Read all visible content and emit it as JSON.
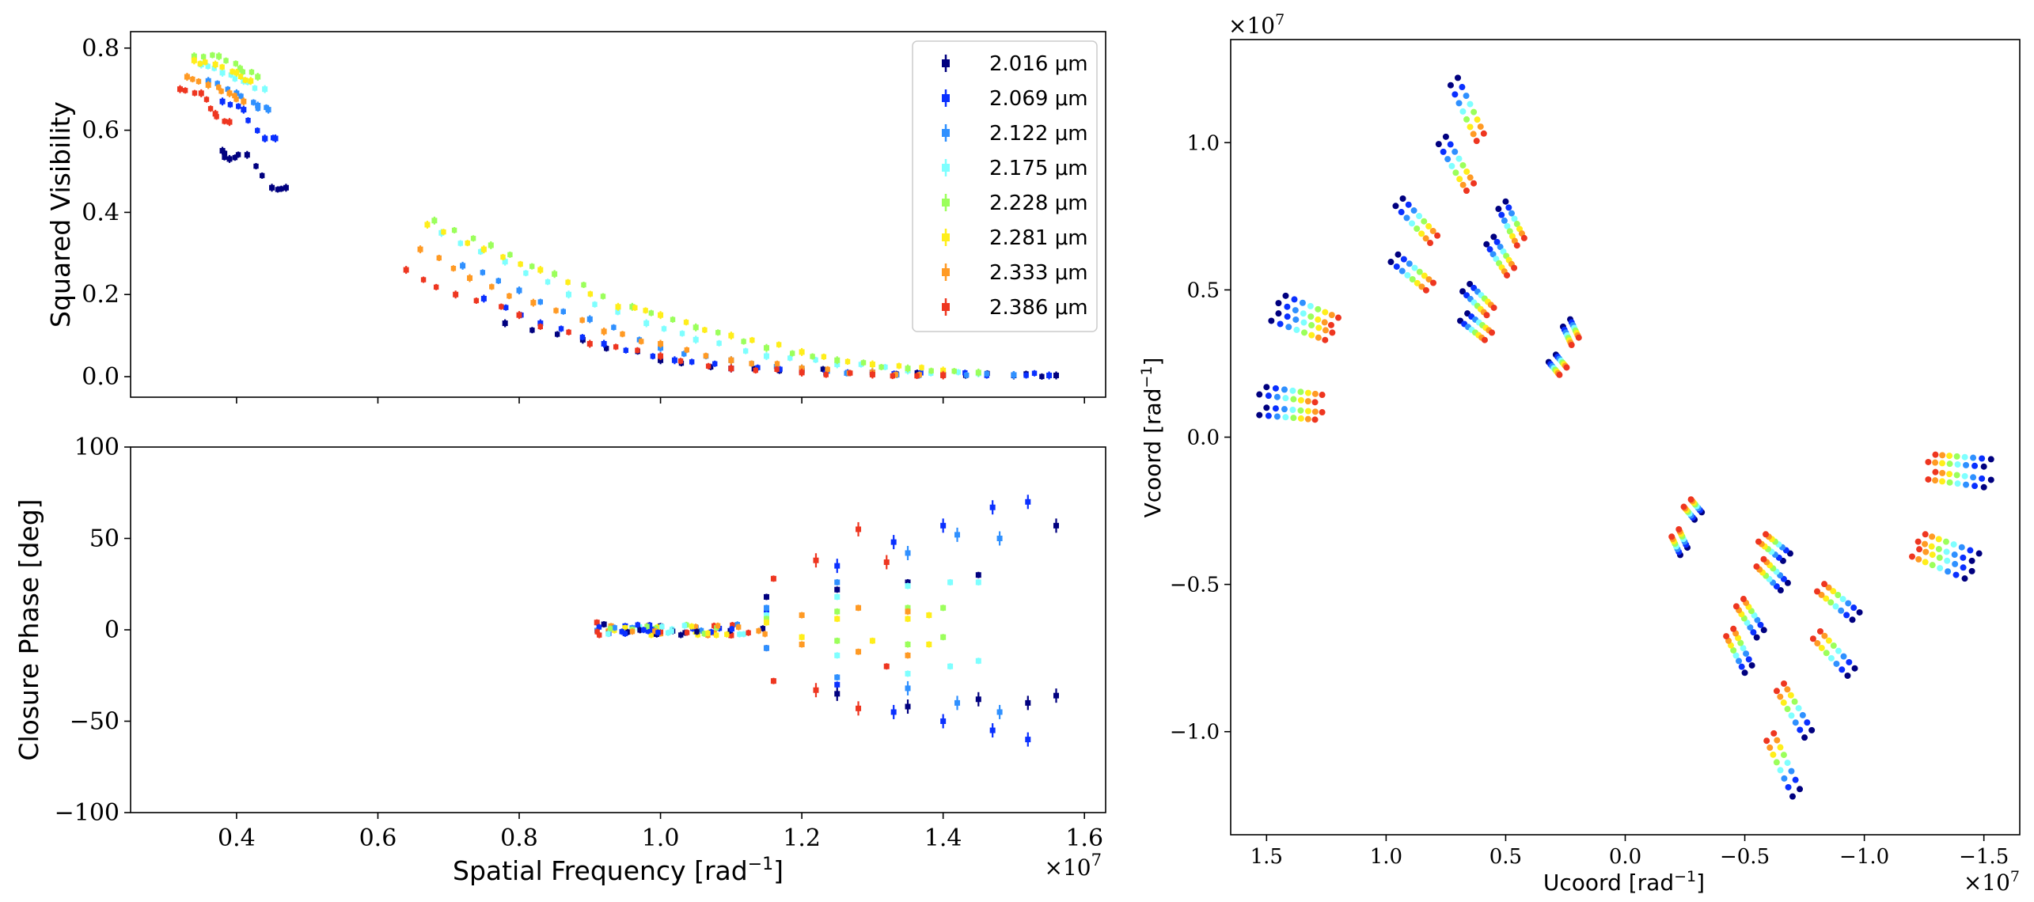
{
  "chart_data": [
    {
      "id": "vis2",
      "type": "scatter",
      "xlabel": "Spatial Frequency [rad^-1]",
      "ylabel": "Squared Visibility",
      "xlim": [
        2500000,
        16300000
      ],
      "ylim": [
        -0.05,
        0.84
      ],
      "yticks": [
        0.0,
        0.2,
        0.4,
        0.6,
        0.8
      ],
      "ytick_labels": [
        "0.0",
        "0.2",
        "0.4",
        "0.6",
        "0.8"
      ],
      "error_bars": true,
      "legend": {
        "position": "top-right",
        "entries": [
          "2.016 μm",
          "2.069 μm",
          "2.122 μm",
          "2.175 μm",
          "2.228 μm",
          "2.281 μm",
          "2.333 μm",
          "2.386 μm"
        ]
      },
      "wavelengths_um": [
        2.016,
        2.069,
        2.122,
        2.175,
        2.228,
        2.281,
        2.333,
        2.386
      ],
      "series_colors": [
        "#00007f",
        "#0a30ff",
        "#2f90ff",
        "#7effff",
        "#9bff5b",
        "#ffee1a",
        "#ff9a24",
        "#ee3620"
      ],
      "series": [
        {
          "name": "2.016 μm",
          "x": [
            3800000.0,
            3900000.0,
            4150000.0,
            4500000.0,
            4700000.0,
            7800000.0,
            8900000.0,
            10000000.0,
            11000000.0,
            12000000.0,
            13000000.0,
            14000000.0,
            15000000.0,
            15600000.0
          ],
          "y": [
            0.55,
            0.53,
            0.54,
            0.46,
            0.46,
            0.13,
            0.09,
            0.04,
            0.02,
            0.015,
            0.01,
            0.005,
            0.003,
            0.003
          ]
        },
        {
          "name": "2.069 μm",
          "x": [
            3800000.0,
            4100000.0,
            4400000.0,
            4550000.0,
            7500000.0,
            8300000.0,
            9200000.0,
            10200000.0,
            11000000.0,
            12000000.0,
            13000000.0,
            14000000.0,
            15000000.0,
            15500000.0
          ],
          "y": [
            0.67,
            0.65,
            0.58,
            0.58,
            0.19,
            0.13,
            0.08,
            0.04,
            0.02,
            0.015,
            0.01,
            0.005,
            0.004,
            0.003
          ]
        },
        {
          "name": "2.122 μm",
          "x": [
            3600000.0,
            4000000.0,
            4300000.0,
            4450000.0,
            7200000.0,
            8000000.0,
            9000000.0,
            10000000.0,
            11000000.0,
            12000000.0,
            13000000.0,
            14000000.0,
            15000000.0
          ],
          "y": [
            0.72,
            0.69,
            0.66,
            0.65,
            0.27,
            0.21,
            0.14,
            0.07,
            0.04,
            0.02,
            0.01,
            0.005,
            0.004
          ]
        },
        {
          "name": "2.175 μm",
          "x": [
            3500000.0,
            3800000.0,
            4100000.0,
            4400000.0,
            6900000.0,
            7800000.0,
            8700000.0,
            9800000.0,
            10500000.0,
            11500000.0,
            12500000.0,
            13500000.0,
            14500000.0
          ],
          "y": [
            0.76,
            0.74,
            0.72,
            0.7,
            0.35,
            0.28,
            0.2,
            0.13,
            0.09,
            0.05,
            0.03,
            0.015,
            0.008
          ]
        },
        {
          "name": "2.228 μm",
          "x": [
            3400000.0,
            3750000.0,
            4050000.0,
            4300000.0,
            6800000.0,
            7600000.0,
            8500000.0,
            9600000.0,
            10500000.0,
            11500000.0,
            12500000.0,
            13500000.0,
            14500000.0
          ],
          "y": [
            0.78,
            0.78,
            0.75,
            0.73,
            0.38,
            0.32,
            0.25,
            0.17,
            0.12,
            0.07,
            0.04,
            0.02,
            0.01
          ]
        },
        {
          "name": "2.281 μm",
          "x": [
            3400000.0,
            3700000.0,
            4000000.0,
            4200000.0,
            6700000.0,
            7500000.0,
            8300000.0,
            9400000.0,
            10000000.0,
            11000000.0,
            12000000.0,
            13000000.0,
            14000000.0
          ],
          "y": [
            0.77,
            0.76,
            0.74,
            0.72,
            0.37,
            0.31,
            0.26,
            0.17,
            0.15,
            0.1,
            0.06,
            0.03,
            0.015
          ]
        },
        {
          "name": "2.333 μm",
          "x": [
            3300000.0,
            3600000.0,
            3900000.0,
            4100000.0,
            6600000.0,
            7300000.0,
            8200000.0,
            9200000.0,
            10000000.0,
            11000000.0,
            12000000.0,
            13000000.0,
            14000000.0
          ],
          "y": [
            0.73,
            0.71,
            0.69,
            0.67,
            0.31,
            0.24,
            0.18,
            0.11,
            0.08,
            0.04,
            0.02,
            0.01,
            0.005
          ]
        },
        {
          "name": "2.386 μm",
          "x": [
            3200000.0,
            3500000.0,
            3700000.0,
            3900000.0,
            6400000.0,
            7100000.0,
            8000000.0,
            9000000.0,
            10000000.0,
            11000000.0,
            12000000.0,
            13000000.0,
            14000000.0
          ],
          "y": [
            0.7,
            0.69,
            0.64,
            0.62,
            0.26,
            0.2,
            0.15,
            0.08,
            0.05,
            0.02,
            0.01,
            0.005,
            0.003
          ]
        }
      ]
    },
    {
      "id": "cp",
      "type": "scatter",
      "xlabel": "Spatial Frequency [rad^-1]",
      "ylabel": "Closure Phase [deg]",
      "xlim": [
        2500000,
        16300000
      ],
      "ylim": [
        -100,
        100
      ],
      "xticks": [
        4000000,
        6000000,
        8000000,
        10000000,
        12000000,
        14000000,
        16000000
      ],
      "xtick_labels": [
        "0.4",
        "0.6",
        "0.8",
        "1.0",
        "1.2",
        "1.4",
        "1.6"
      ],
      "yticks": [
        -100,
        -50,
        0,
        50,
        100
      ],
      "ytick_labels": [
        "−100",
        "−50",
        "0",
        "50",
        "100"
      ],
      "x_offset_label": "×10^7",
      "error_bars": true,
      "series": [
        {
          "name": "2.016 μm",
          "x": [
            9200000.0,
            10000000.0,
            11500000.0,
            12500000.0,
            13500000.0,
            14500000.0,
            15600000.0,
            15600000.0,
            15200000.0,
            14500000.0,
            13500000.0,
            12500000.0,
            11500000.0
          ],
          "y": [
            3,
            2,
            18,
            22,
            26,
            30,
            57,
            -36,
            -40,
            -38,
            -42,
            -35,
            -10
          ]
        },
        {
          "name": "2.069 μm",
          "x": [
            9500000.0,
            10500000.0,
            11500000.0,
            12500000.0,
            13300000.0,
            14000000.0,
            14700000.0,
            15200000.0,
            15200000.0,
            14700000.0,
            14000000.0,
            13300000.0,
            12500000.0
          ],
          "y": [
            2,
            1,
            10,
            35,
            48,
            57,
            67,
            70,
            -60,
            -55,
            -50,
            -45,
            -30
          ]
        },
        {
          "name": "2.122 μm",
          "x": [
            9600000.0,
            10500000.0,
            11500000.0,
            12500000.0,
            13500000.0,
            14200000.0,
            14800000.0,
            14800000.0,
            14200000.0,
            13500000.0,
            12500000.0,
            11500000.0
          ],
          "y": [
            1,
            0,
            12,
            26,
            42,
            52,
            50,
            -45,
            -40,
            -32,
            -26,
            -10
          ]
        },
        {
          "name": "2.175 μm",
          "x": [
            9700000.0,
            10500000.0,
            11500000.0,
            12500000.0,
            13500000.0,
            14100000.0,
            14500000.0,
            14500000.0,
            14100000.0,
            13500000.0,
            12500000.0
          ],
          "y": [
            1,
            -1,
            8,
            18,
            24,
            26,
            26,
            -17,
            -20,
            -24,
            -14
          ]
        },
        {
          "name": "2.228 μm",
          "x": [
            9600000.0,
            10500000.0,
            11500000.0,
            12500000.0,
            13500000.0,
            14000000.0,
            14000000.0,
            13500000.0,
            12500000.0
          ],
          "y": [
            0,
            -1,
            6,
            10,
            12,
            12,
            -4,
            -8,
            -6
          ]
        },
        {
          "name": "2.281 μm",
          "x": [
            9500000.0,
            10500000.0,
            11500000.0,
            12500000.0,
            13500000.0,
            13800000.0,
            13800000.0,
            13000000.0,
            12000000.0
          ],
          "y": [
            1,
            -1,
            4,
            6,
            6,
            8,
            -8,
            -6,
            -4
          ]
        },
        {
          "name": "2.333 μm",
          "x": [
            9300000.0,
            10000000.0,
            11000000.0,
            12000000.0,
            12800000.0,
            13500000.0,
            13500000.0,
            12800000.0,
            12000000.0
          ],
          "y": [
            2,
            -2,
            -3,
            -8,
            -12,
            -14,
            10,
            12,
            8
          ]
        },
        {
          "name": "2.386 μm",
          "x": [
            9100000.0,
            10000000.0,
            11000000.0,
            11600000.0,
            12200000.0,
            12800000.0,
            13200000.0,
            13200000.0,
            12800000.0,
            12200000.0,
            11600000.0
          ],
          "y": [
            4,
            -1,
            -3,
            -28,
            -33,
            -43,
            -20,
            37,
            55,
            38,
            28
          ]
        }
      ]
    },
    {
      "id": "uv",
      "type": "scatter",
      "xlabel": "Ucoord [rad^-1]",
      "ylabel": "Vcoord [rad^-1]",
      "xlim": [
        16500000,
        -16500000
      ],
      "ylim": [
        -13500000,
        13500000
      ],
      "xticks": [
        15000000,
        10000000,
        5000000,
        0,
        -5000000,
        -10000000,
        -15000000
      ],
      "xtick_labels": [
        "1.5",
        "1.0",
        "0.5",
        "0.0",
        "−0.5",
        "−1.0",
        "−1.5"
      ],
      "yticks": [
        -10000000,
        -5000000,
        0,
        5000000,
        10000000
      ],
      "ytick_labels": [
        "−1.0",
        "−0.5",
        "0.0",
        "0.5",
        "1.0"
      ],
      "x_offset_label": "×10^7",
      "y_offset_label": "×10^7",
      "point_series": "each baseline sampled at 8 wavelengths (2.016 to 2.386 μm), track radial from origin, shown with point-symmetric conjugates",
      "baselines": [
        {
          "u": 7000000.0,
          "v": 12200000.0
        },
        {
          "u": 7500000.0,
          "v": 10200000.0
        },
        {
          "u": 9300000.0,
          "v": 8100000.0
        },
        {
          "u": 9500000.0,
          "v": 6200000.0
        },
        {
          "u": 14200000.0,
          "v": 4800000.0
        },
        {
          "u": 14500000.0,
          "v": 4200000.0
        },
        {
          "u": 15000000.0,
          "v": 1700000.0
        },
        {
          "u": 15000000.0,
          "v": 1000000.0
        },
        {
          "u": 5000000.0,
          "v": 8000000.0
        },
        {
          "u": 5500000.0,
          "v": 6800000.0
        },
        {
          "u": 6500000.0,
          "v": 5200000.0
        },
        {
          "u": 6600000.0,
          "v": 4200000.0
        },
        {
          "u": 2300000.0,
          "v": 4000000.0
        },
        {
          "u": 2900000.0,
          "v": 2800000.0
        }
      ]
    }
  ]
}
